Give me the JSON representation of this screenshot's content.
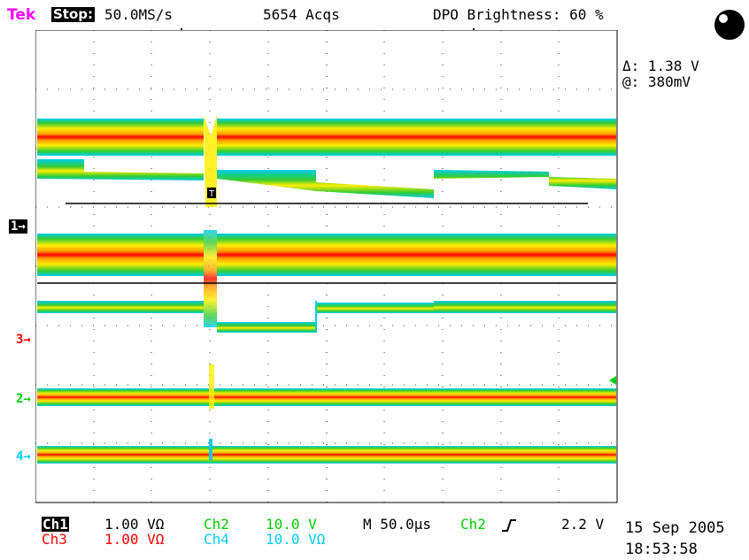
{
  "header": {
    "brand": "Tek",
    "run_state": "Stop:",
    "sample_rate": "50.0MS/s",
    "acquisitions": "5654 Acqs",
    "brightness": "DPO Brightness: 60 %",
    "record_window": "[...........T...........]"
  },
  "cursor_readout": {
    "delta": "Δ: 1.38 V",
    "at": "@: 380mV"
  },
  "channel_markers": [
    {
      "label": "1→",
      "color": "#ffffff",
      "bg": "#000000"
    },
    {
      "label": "3→",
      "color": "#ff0000"
    },
    {
      "label": "2→",
      "color": "#00cc00"
    },
    {
      "label": "4→",
      "color": "#00ccff"
    }
  ],
  "trigger_marker": "T",
  "footer": {
    "ch1_label": "Ch1",
    "ch1_scale": "1.00 VΩ",
    "ch2_label": "Ch2",
    "ch2_scale": "10.0 V",
    "ch3_label": "Ch3",
    "ch3_scale": "1.00 VΩ",
    "ch4_label": "Ch4",
    "ch4_scale": "10.0 VΩ",
    "timebase": "M 50.0µs",
    "trigger_source": "Ch2",
    "trigger_slope_icon": "rising-edge-icon",
    "trigger_level": "2.2 V",
    "date": "15 Sep 2005",
    "time": "18:53:58"
  },
  "colors": {
    "ch1": "#000000",
    "ch2": "#00cc00",
    "ch3": "#ff0000",
    "ch4": "#00ccff",
    "persistence_hot": "#ff0000",
    "persistence_mid": "#ff9900",
    "persistence_warm": "#ffee00",
    "persistence_cool": "#33cc33",
    "persistence_cold": "#00ccee"
  },
  "screen": {
    "divisions_x": 10,
    "divisions_y": 8,
    "power_icon": "power-indicator-icon"
  }
}
